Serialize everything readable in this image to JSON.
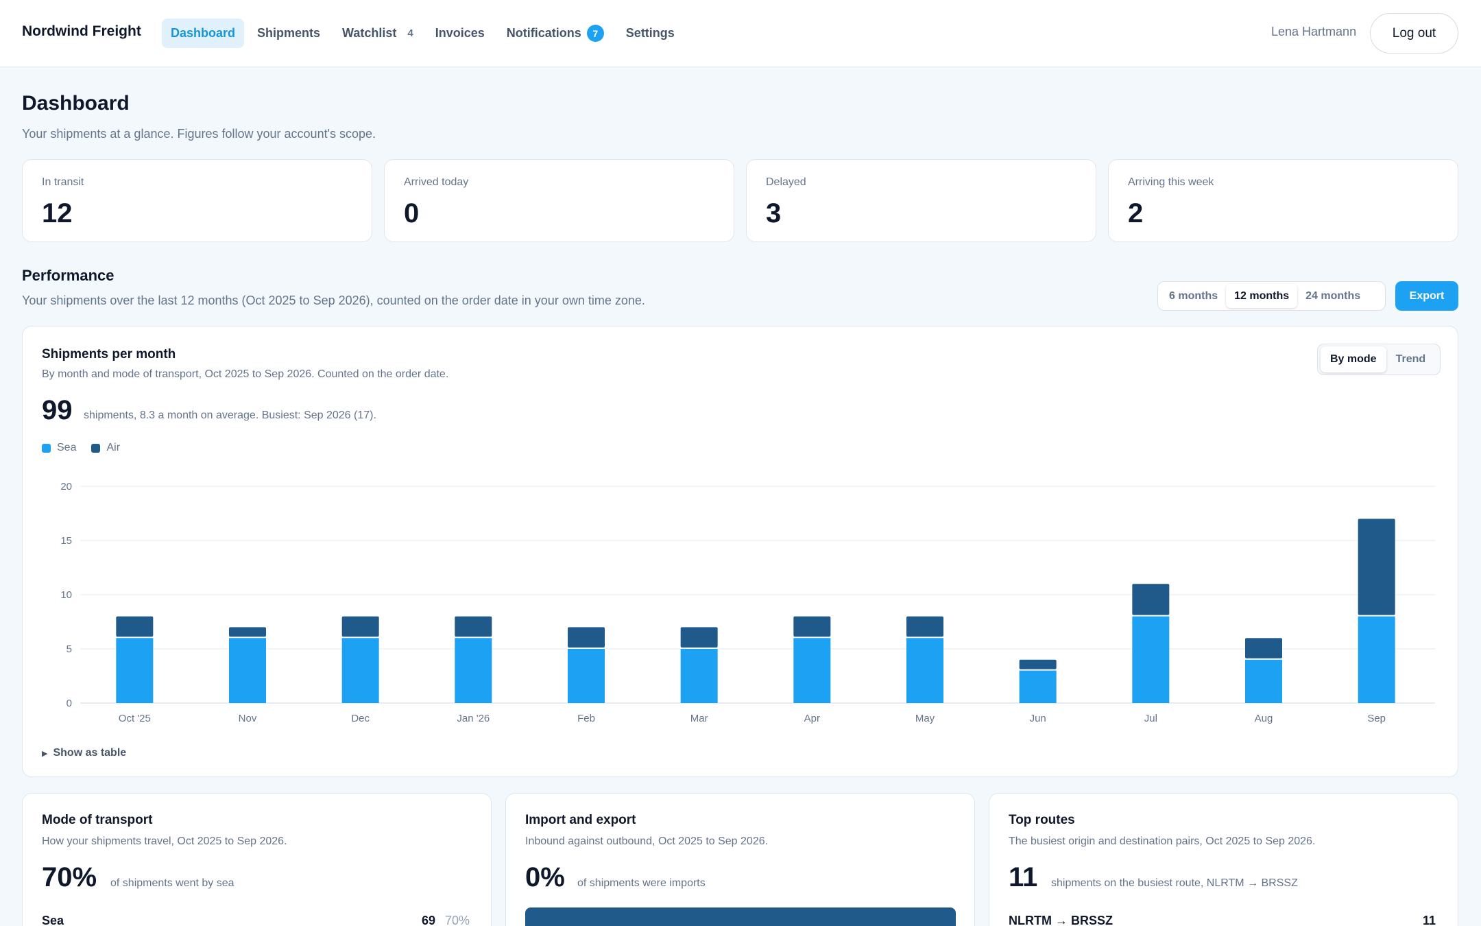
{
  "app": {
    "brand": "Nordwind Freight",
    "user": "Lena Hartmann",
    "logout_label": "Log out"
  },
  "nav": {
    "dashboard": "Dashboard",
    "shipments": "Shipments",
    "watchlist": "Watchlist",
    "watchlist_count": "4",
    "invoices": "Invoices",
    "notifications": "Notifications",
    "notifications_count": "7",
    "settings": "Settings"
  },
  "header": {
    "title": "Dashboard",
    "subtitle": "Your shipments at a glance. Figures follow your account's scope."
  },
  "stats": [
    {
      "label": "In transit",
      "value": "12"
    },
    {
      "label": "Arrived today",
      "value": "0"
    },
    {
      "label": "Delayed",
      "value": "3"
    },
    {
      "label": "Arriving this week",
      "value": "2"
    }
  ],
  "performance": {
    "title": "Performance",
    "subtitle": "Your shipments over the last 12 months (Oct 2025 to Sep 2026), counted on the order date in your own time zone.",
    "ranges": [
      "6 months",
      "12 months",
      "24 months"
    ],
    "selected_range": "12 months",
    "export_label": "Export"
  },
  "chart_card": {
    "title": "Shipments per month",
    "subtitle": "By month and mode of transport, Oct 2025 to Sep 2026. Counted on the order date.",
    "total": "99",
    "total_note": "shipments, 8.3 a month on average. Busiest: Sep 2026 (17).",
    "modes": [
      "By mode",
      "Trend"
    ],
    "selected_mode": "By mode",
    "show_table_label": "Show as table"
  },
  "chart_data": {
    "type": "bar",
    "stacked": true,
    "categories": [
      "Oct '25",
      "Nov",
      "Dec",
      "Jan '26",
      "Feb",
      "Mar",
      "Apr",
      "May",
      "Jun",
      "Jul",
      "Aug",
      "Sep"
    ],
    "series": [
      {
        "name": "Sea",
        "color": "#1da1f2",
        "values": [
          6,
          6,
          6,
          6,
          5,
          5,
          6,
          6,
          3,
          8,
          4,
          8
        ]
      },
      {
        "name": "Air",
        "color": "#1f5a8a",
        "values": [
          2,
          1,
          2,
          2,
          2,
          2,
          2,
          2,
          1,
          3,
          2,
          9
        ]
      }
    ],
    "ylim": [
      0,
      20
    ],
    "yticks": [
      0,
      5,
      10,
      15,
      20
    ],
    "grid": true,
    "legend": "top-left"
  },
  "cards": {
    "mode": {
      "title": "Mode of transport",
      "subtitle": "How your shipments travel, Oct 2025 to Sep 2026.",
      "big": "70%",
      "note": "of shipments went by sea",
      "row_label": "Sea",
      "row_value": "69",
      "row_pct": "70%"
    },
    "impexp": {
      "title": "Import and export",
      "subtitle": "Inbound against outbound, Oct 2025 to Sep 2026.",
      "big": "0%",
      "note": "of shipments were imports"
    },
    "routes": {
      "title": "Top routes",
      "subtitle": "The busiest origin and destination pairs, Oct 2025 to Sep 2026.",
      "big": "11",
      "note": "shipments on the busiest route, NLRTM → BRSSZ",
      "row_label": "NLRTM → BRSSZ",
      "row_value": "11"
    }
  }
}
